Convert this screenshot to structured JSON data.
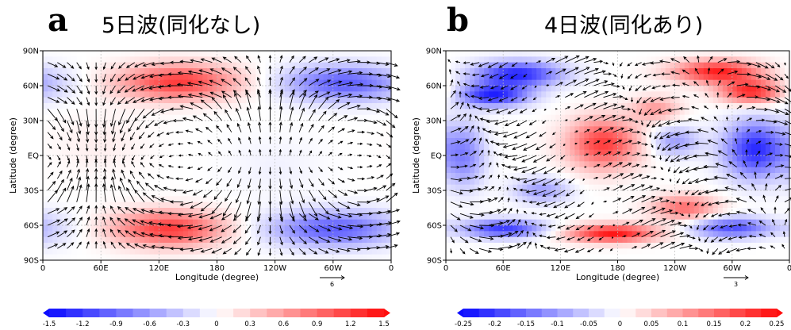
{
  "chart_data": [
    {
      "type": "heatmap",
      "panel_label": "a",
      "title": "5日波(同化なし)",
      "xlabel": "Longitude (degree)",
      "ylabel": "Latitude (degree)",
      "x_ticks": [
        "0",
        "60E",
        "120E",
        "180",
        "120W",
        "60W",
        "0"
      ],
      "y_ticks": [
        "90N",
        "60N",
        "30N",
        "EQ",
        "30S",
        "60S",
        "90S"
      ],
      "xlim": [
        0,
        360
      ],
      "ylim": [
        -90,
        90
      ],
      "grid": true,
      "reference_vector": "6",
      "colorbar_ticks": [
        "-1.5",
        "-1.2",
        "-0.9",
        "-0.6",
        "-0.3",
        "0",
        "0.3",
        "0.6",
        "0.9",
        "1.2",
        "1.5"
      ],
      "colorbar_range": [
        -1.5,
        1.5
      ],
      "anomalies": [
        {
          "lon": 140,
          "lat": 63,
          "value": 1.2,
          "dlon": 75,
          "dlat": 14
        },
        {
          "lon": 310,
          "lat": 62,
          "value": -1.0,
          "dlon": 75,
          "dlat": 14
        },
        {
          "lon": 130,
          "lat": -63,
          "value": 1.2,
          "dlon": 70,
          "dlat": 14
        },
        {
          "lon": 300,
          "lat": -63,
          "value": -1.0,
          "dlon": 80,
          "dlat": 14
        },
        {
          "lon": 60,
          "lat": 10,
          "value": 0.1,
          "dlon": 60,
          "dlat": 25
        },
        {
          "lon": 240,
          "lat": -10,
          "value": -0.08,
          "dlon": 60,
          "dlat": 25
        }
      ],
      "vector_field": {
        "kind": "wave5"
      }
    },
    {
      "type": "heatmap",
      "panel_label": "b",
      "title": "4日波(同化あり)",
      "xlabel": "Longitude (degree)",
      "ylabel": "Latitude (degree)",
      "x_ticks": [
        "0",
        "60E",
        "120E",
        "180",
        "120W",
        "60W",
        "0"
      ],
      "y_ticks": [
        "90N",
        "60N",
        "30N",
        "EQ",
        "30S",
        "60S",
        "90S"
      ],
      "xlim": [
        0,
        360
      ],
      "ylim": [
        -90,
        90
      ],
      "grid": true,
      "reference_vector": "3",
      "colorbar_ticks": [
        "-0.25",
        "-0.2",
        "-0.15",
        "-0.1",
        "-0.05",
        "0",
        "0.05",
        "0.1",
        "0.15",
        "0.2",
        "0.25"
      ],
      "colorbar_range": [
        -0.25,
        0.25
      ],
      "anomalies": [
        {
          "lon": 75,
          "lat": 70,
          "value": -0.22,
          "dlon": 55,
          "dlat": 10
        },
        {
          "lon": 50,
          "lat": 52,
          "value": -0.22,
          "dlon": 45,
          "dlat": 9
        },
        {
          "lon": 285,
          "lat": 72,
          "value": 0.23,
          "dlon": 55,
          "dlat": 9
        },
        {
          "lon": 320,
          "lat": 55,
          "value": 0.22,
          "dlon": 40,
          "dlat": 9
        },
        {
          "lon": 165,
          "lat": 10,
          "value": 0.2,
          "dlon": 45,
          "dlat": 20
        },
        {
          "lon": 325,
          "lat": 5,
          "value": -0.22,
          "dlon": 40,
          "dlat": 22
        },
        {
          "lon": 240,
          "lat": 12,
          "value": -0.1,
          "dlon": 30,
          "dlat": 12
        },
        {
          "lon": 20,
          "lat": 0,
          "value": -0.12,
          "dlon": 25,
          "dlat": 25
        },
        {
          "lon": 250,
          "lat": -45,
          "value": 0.15,
          "dlon": 40,
          "dlat": 10
        },
        {
          "lon": 175,
          "lat": -67,
          "value": 0.24,
          "dlon": 55,
          "dlat": 7
        },
        {
          "lon": 60,
          "lat": -63,
          "value": -0.2,
          "dlon": 50,
          "dlat": 7
        },
        {
          "lon": 300,
          "lat": -62,
          "value": -0.18,
          "dlon": 50,
          "dlat": 8
        },
        {
          "lon": 100,
          "lat": -30,
          "value": -0.1,
          "dlon": 35,
          "dlat": 10
        },
        {
          "lon": 220,
          "lat": 40,
          "value": 0.1,
          "dlon": 30,
          "dlat": 10
        }
      ],
      "vector_field": {
        "kind": "wave4"
      }
    }
  ],
  "colors": {
    "negative": "#0000ff",
    "positive": "#ff0000",
    "neutral": "#ffffff",
    "axis": "#000000",
    "grid": "#bbbbbb"
  }
}
